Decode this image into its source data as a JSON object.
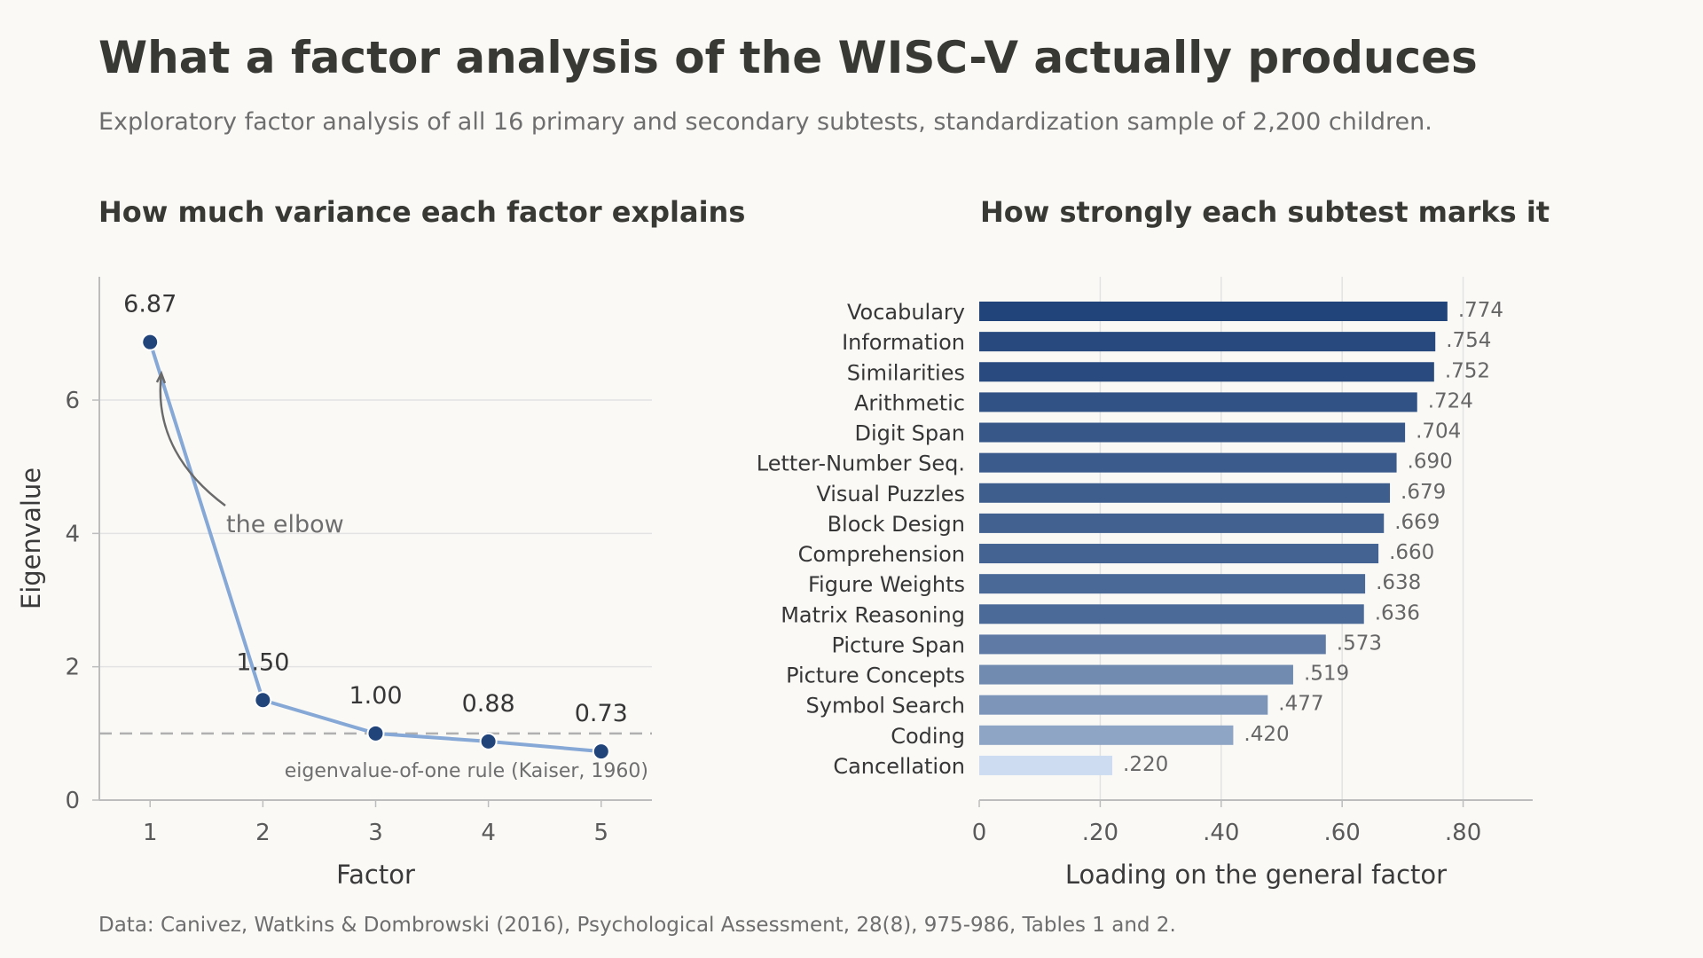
{
  "title": "What a factor analysis of the WISC-V actually produces",
  "subtitle": "Exploratory factor analysis of all 16 primary and secondary subtests, standardization sample of 2,200 children.",
  "footnote": "Data: Canivez, Watkins & Dombrowski (2016), Psychological Assessment, 28(8), 975-986, Tables 1 and 2.",
  "colors": {
    "line": "#86a8d6",
    "marker": "#21447a",
    "bar_dark": "#21447a",
    "bar_light": "#cddcf0",
    "grid": "#e3e3e3",
    "reference": "#b0b0b0"
  },
  "chart_data": [
    {
      "type": "line",
      "title": "How much variance each factor explains",
      "xlabel": "Factor",
      "ylabel": "Eigenvalue",
      "x": [
        1,
        2,
        3,
        4,
        5
      ],
      "values": [
        6.87,
        1.5,
        1.0,
        0.88,
        0.73
      ],
      "point_labels": [
        "6.87",
        "1.50",
        "1.00",
        "0.88",
        "0.73"
      ],
      "x_ticks": [
        "1",
        "2",
        "3",
        "4",
        "5"
      ],
      "y_ticks": [
        0,
        2,
        4,
        6
      ],
      "xlim": [
        0.55,
        5.45
      ],
      "ylim": [
        0,
        7.85
      ],
      "grid": "horizontal",
      "reference_line": {
        "y": 1.0,
        "label": "eigenvalue-of-one rule (Kaiser, 1960)"
      },
      "annotation": {
        "text": "the elbow",
        "points_to_x": 1.1,
        "points_to_y": 6.4
      }
    },
    {
      "type": "bar",
      "orientation": "horizontal",
      "title": "How strongly each subtest marks it",
      "xlabel": "Loading on the general factor",
      "categories": [
        "Vocabulary",
        "Information",
        "Similarities",
        "Arithmetic",
        "Digit Span",
        "Letter-Number Seq.",
        "Visual Puzzles",
        "Block Design",
        "Comprehension",
        "Figure Weights",
        "Matrix Reasoning",
        "Picture Span",
        "Picture Concepts",
        "Symbol Search",
        "Coding",
        "Cancellation"
      ],
      "values": [
        0.774,
        0.754,
        0.752,
        0.724,
        0.704,
        0.69,
        0.679,
        0.669,
        0.66,
        0.638,
        0.636,
        0.573,
        0.519,
        0.477,
        0.42,
        0.22
      ],
      "value_labels": [
        ".774",
        ".754",
        ".752",
        ".724",
        ".704",
        ".690",
        ".679",
        ".669",
        ".660",
        ".638",
        ".636",
        ".573",
        ".519",
        ".477",
        ".420",
        ".220"
      ],
      "x_ticks": [
        0,
        0.2,
        0.4,
        0.6,
        0.8
      ],
      "x_tick_labels": [
        "0",
        ".20",
        ".40",
        ".60",
        ".80"
      ],
      "xlim": [
        0,
        0.915
      ],
      "grid": "vertical"
    }
  ]
}
